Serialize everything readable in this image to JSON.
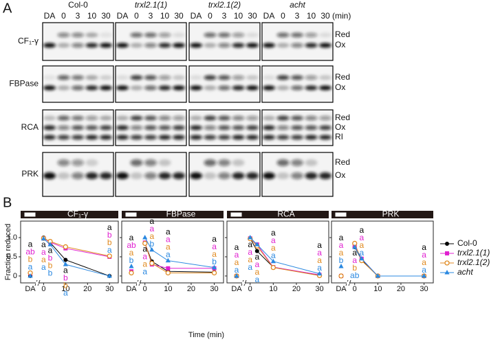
{
  "panel_a": {
    "label": "A",
    "genotypes": [
      "Col-0",
      "trxl2.1(1)",
      "trxl2.1(2)",
      "acht"
    ],
    "lanes": [
      "DA",
      "0",
      "3",
      "10",
      "30"
    ],
    "unit": "(min)",
    "rows": [
      {
        "name": "CF₁-γ",
        "bands": [
          "Red",
          "Ox"
        ]
      },
      {
        "name": "FBPase",
        "bands": [
          "Red",
          "Ox"
        ]
      },
      {
        "name": "RCA",
        "bands": [
          "Red",
          "Ox",
          "RI"
        ]
      },
      {
        "name": "PRK",
        "bands": [
          "Red",
          "Ox"
        ]
      }
    ]
  },
  "panel_b": {
    "label": "B",
    "ylabel": "Fraction reduced",
    "xlabel": "Time (min)",
    "legend": [
      {
        "name": "Col-0",
        "color": "#000000",
        "marker": "circle"
      },
      {
        "name": "trxl2.1(1)",
        "color": "#e020d0",
        "marker": "square"
      },
      {
        "name": "trxl2.1(2)",
        "color": "#e08a20",
        "marker": "open-circle"
      },
      {
        "name": "acht",
        "color": "#2a88e0",
        "marker": "triangle"
      }
    ]
  },
  "chart_data": [
    {
      "type": "line",
      "title": "CF₁-γ",
      "dark_label": "DA",
      "x": [
        0,
        3,
        10,
        30
      ],
      "xlim": [
        -2,
        34
      ],
      "xticks": [
        0,
        10,
        20,
        30
      ],
      "ylim": [
        -0.18,
        1.43
      ],
      "yticks": [
        0,
        0.5,
        {
          "value": 1,
          "label": "1.0"
        }
      ],
      "series": [
        {
          "dark": 0,
          "values": [
            1,
            0.87,
            0.42,
            0
          ],
          "letters": [
            "a",
            "a",
            "a",
            "a",
            "a"
          ]
        },
        {
          "dark": 0.07,
          "values": [
            0.98,
            0.88,
            0.72,
            0.5
          ],
          "letters": [
            "ab",
            "a",
            "b",
            "b",
            "b"
          ]
        },
        {
          "dark": 0.08,
          "values": [
            0.98,
            0.9,
            0.76,
            0.52
          ],
          "letters": [
            "b",
            "a",
            "b",
            "b",
            "b"
          ]
        },
        {
          "dark": 0,
          "values": [
            0.97,
            0.82,
            0.3,
            0
          ],
          "letters": [
            "a",
            "a",
            "b",
            "a",
            "a"
          ]
        }
      ]
    },
    {
      "type": "line",
      "title": "FBPase",
      "dark_label": "DA",
      "x": [
        0,
        3,
        10,
        30
      ],
      "xlim": [
        -2,
        34
      ],
      "xticks": [
        0,
        10,
        20,
        30
      ],
      "ylim": [
        -0.18,
        1.43
      ],
      "series": [
        {
          "dark": 0.07,
          "values": [
            0.85,
            0.38,
            0.12,
            0.1
          ],
          "letters": [
            "a",
            "a",
            "a",
            "a",
            "a"
          ]
        },
        {
          "dark": 0.12,
          "values": [
            0.87,
            0.3,
            0.2,
            0.2
          ],
          "letters": [
            "ab",
            "a",
            "a",
            "a",
            "a"
          ]
        },
        {
          "dark": 0.08,
          "values": [
            0.85,
            0.33,
            0.08,
            0.08
          ],
          "letters": [
            "a",
            "a",
            "a",
            "a",
            "a"
          ]
        },
        {
          "dark": 0.25,
          "values": [
            1,
            0.68,
            0.4,
            0.22
          ],
          "letters": [
            "b",
            "a",
            "b",
            "a",
            "b"
          ]
        }
      ]
    },
    {
      "type": "line",
      "title": "RCA",
      "dark_label": "DA",
      "x": [
        0,
        3,
        10,
        30
      ],
      "xlim": [
        -2,
        34
      ],
      "xticks": [
        0,
        10,
        20,
        30
      ],
      "ylim": [
        -0.18,
        1.43
      ],
      "series": [
        {
          "dark": 0,
          "values": [
            0.98,
            0.65,
            0.23,
            0.02
          ],
          "letters": [
            "a",
            "a",
            "a",
            "a",
            "a"
          ]
        },
        {
          "dark": 0,
          "values": [
            0.98,
            0.82,
            0.23,
            0.03
          ],
          "letters": [
            "a",
            "a",
            "a",
            "a",
            "a"
          ]
        },
        {
          "dark": 0,
          "values": [
            0.97,
            0.78,
            0.22,
            0.01
          ],
          "letters": [
            "a",
            "a",
            "a",
            "a",
            "a"
          ]
        },
        {
          "dark": 0,
          "values": [
            1,
            0.82,
            0.38,
            0.06
          ],
          "letters": [
            "a",
            "a",
            "a",
            "a",
            "a"
          ]
        }
      ]
    },
    {
      "type": "line",
      "title": "PRK",
      "dark_label": "DA",
      "x": [
        0,
        3,
        10,
        30
      ],
      "xlim": [
        -2,
        34
      ],
      "xticks": [
        0,
        10,
        20,
        30
      ],
      "ylim": [
        -0.18,
        1.43
      ],
      "series": [
        {
          "dark": 0,
          "values": [
            0.75,
            0.42,
            0,
            0
          ],
          "letters": [
            "a",
            "a",
            "a",
            null,
            "a"
          ]
        },
        {
          "dark": 0,
          "values": [
            0.78,
            0.45,
            0,
            0
          ],
          "letters": [
            "a",
            "a",
            "a",
            null,
            "a"
          ]
        },
        {
          "dark": 0,
          "values": [
            0.85,
            0.4,
            0,
            0
          ],
          "letters": [
            "a",
            "b",
            "a",
            null,
            "a"
          ]
        },
        {
          "dark": 0.25,
          "values": [
            0.75,
            0.45,
            0,
            0
          ],
          "letters": [
            "b",
            "ab",
            "a",
            null,
            "a"
          ]
        }
      ]
    }
  ]
}
